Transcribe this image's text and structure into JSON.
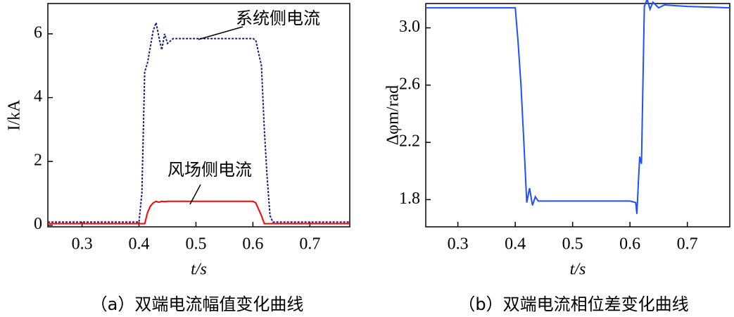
{
  "chart_data": [
    {
      "type": "line",
      "ylabel": "I/kA",
      "xlabel": "t/s",
      "caption": "（a）双端电流幅值变化曲线",
      "x": [
        0.24,
        0.4,
        0.405,
        0.41,
        0.415,
        0.42,
        0.425,
        0.43,
        0.435,
        0.44,
        0.445,
        0.45,
        0.46,
        0.6,
        0.605,
        0.615,
        0.62,
        0.625,
        0.63,
        0.635,
        0.77
      ],
      "series": [
        {
          "name": "系统侧电流",
          "color": "#1a1f7a",
          "values": [
            0.1,
            0.1,
            1.0,
            4.8,
            5.1,
            5.6,
            6.1,
            6.35,
            5.9,
            5.5,
            6.0,
            5.7,
            5.85,
            5.85,
            5.8,
            5.0,
            3.0,
            1.5,
            0.3,
            0.1,
            0.1
          ]
        },
        {
          "name": "风场侧电流",
          "color": "#ff0000",
          "values": [
            0.05,
            0.05,
            0.05,
            0.05,
            0.4,
            0.6,
            0.7,
            0.75,
            0.72,
            0.75,
            0.74,
            0.75,
            0.75,
            0.75,
            0.7,
            0.3,
            0.05,
            0.05,
            0.05,
            0.05,
            0.05
          ]
        }
      ],
      "xlim": [
        0.24,
        0.77
      ],
      "ylim": [
        -0.05,
        6.95
      ],
      "xticks": [
        0.3,
        0.4,
        0.5,
        0.6,
        0.7
      ],
      "yticks": [
        0,
        2,
        4,
        6
      ]
    },
    {
      "type": "line",
      "ylabel": "Δφm/rad",
      "xlabel": "t/s",
      "caption": "（b）双端电流相位差变化曲线",
      "x": [
        0.244,
        0.4,
        0.405,
        0.41,
        0.415,
        0.42,
        0.425,
        0.43,
        0.435,
        0.44,
        0.45,
        0.6,
        0.61,
        0.612,
        0.615,
        0.617,
        0.62,
        0.625,
        0.63,
        0.635,
        0.64,
        0.65,
        0.66,
        0.7,
        0.774
      ],
      "series": [
        {
          "color": "#1f4fff",
          "values": [
            3.14,
            3.14,
            2.9,
            2.6,
            2.2,
            1.78,
            1.88,
            1.76,
            1.82,
            1.79,
            1.79,
            1.79,
            1.78,
            1.7,
            1.95,
            2.1,
            2.05,
            3.15,
            3.2,
            3.13,
            3.18,
            3.14,
            3.16,
            3.15,
            3.14
          ]
        }
      ],
      "xlim": [
        0.244,
        0.774
      ],
      "ylim": [
        1.61,
        3.17
      ],
      "xticks": [
        0.3,
        0.4,
        0.5,
        0.6,
        0.7
      ],
      "yticks": [
        {
          "value": 3,
          "label": "3.0"
        },
        2.6,
        2.2,
        1.8
      ]
    }
  ]
}
